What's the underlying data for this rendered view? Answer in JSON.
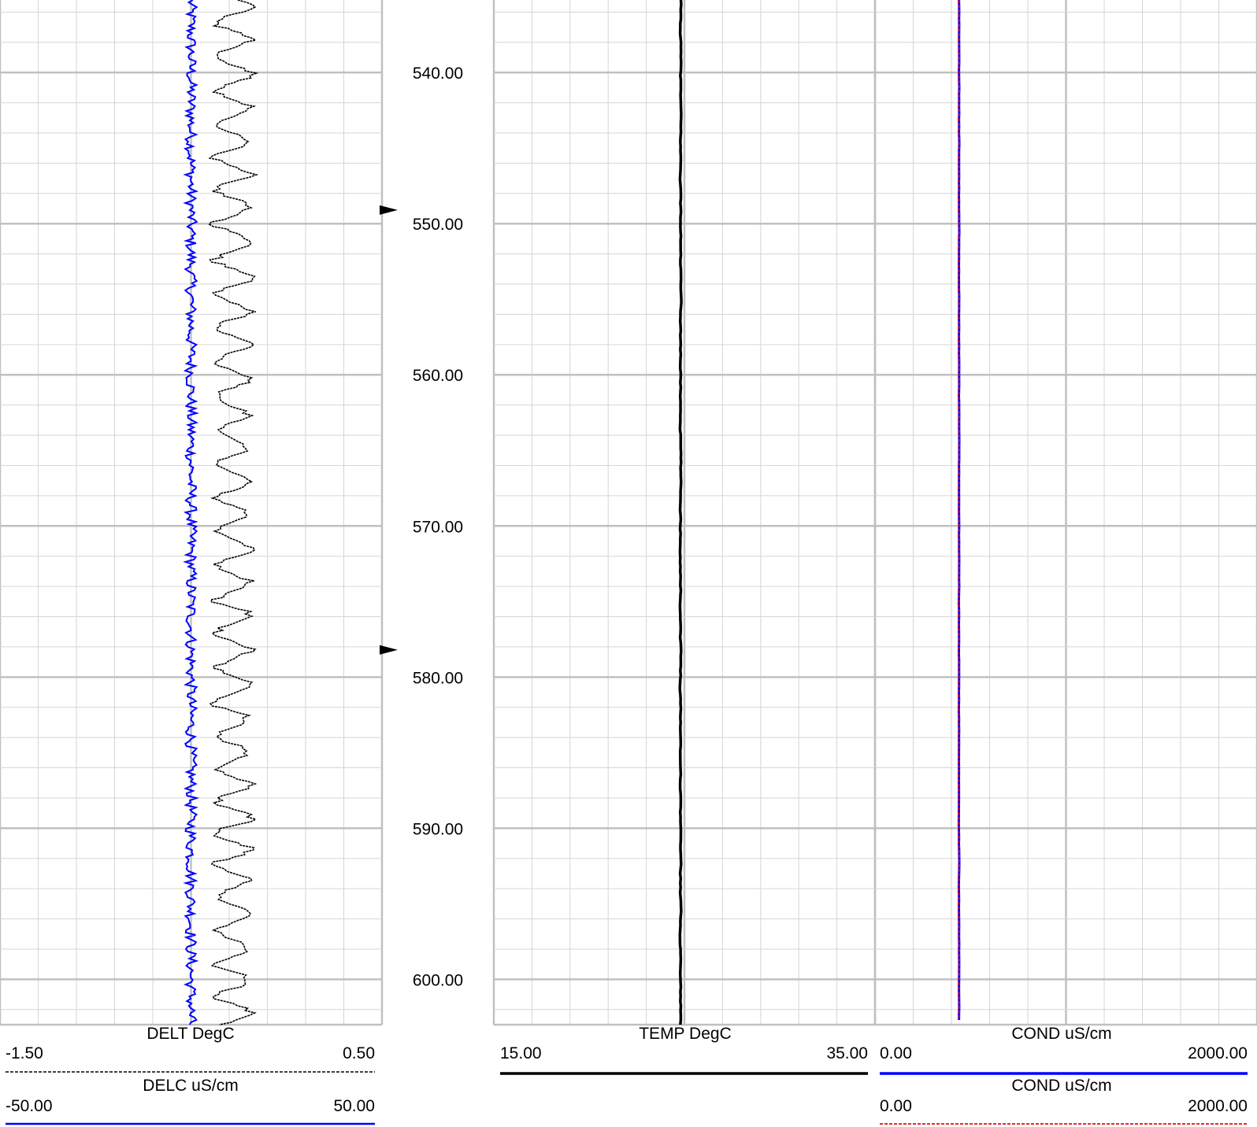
{
  "colors": {
    "grid_major": "#c0c0c0",
    "grid_minor": "#d6d6d6",
    "temp_curve": "#000000",
    "delt_curve": "#000000",
    "delc_curve": "#0000ff",
    "cond_curve": "#0000ff",
    "cond2_curve": "#ff0000"
  },
  "depth": {
    "labels": [
      "540.00",
      "550.00",
      "560.00",
      "570.00",
      "580.00",
      "590.00",
      "600.00"
    ],
    "top": 535.2,
    "bottom": 603.0,
    "markers": [
      549.1,
      578.2
    ]
  },
  "tracks": {
    "left": {
      "curves": [
        {
          "mnemonic": "DELT",
          "unit": "DegC",
          "min": "-1.50",
          "max": "0.50",
          "line_style": "dashed",
          "color": "#000000"
        },
        {
          "mnemonic": "DELC",
          "unit": "uS/cm",
          "min": "-50.00",
          "max": "50.00",
          "line_style": "solid",
          "color": "#0000ff"
        }
      ]
    },
    "middle": {
      "curves": [
        {
          "mnemonic": "TEMP",
          "unit": "DegC",
          "min": "15.00",
          "max": "35.00",
          "line_style": "solid",
          "color": "#000000"
        }
      ]
    },
    "right": {
      "curves": [
        {
          "mnemonic": "COND",
          "unit": "uS/cm",
          "min": "0.00",
          "max": "2000.00",
          "line_style": "solid",
          "color": "#0000ff"
        },
        {
          "mnemonic": "COND",
          "unit": "uS/cm",
          "min": "0.00",
          "max": "2000.00",
          "line_style": "dashed",
          "color": "#ff0000"
        }
      ]
    }
  },
  "chart_data": {
    "type": "line",
    "orientation": "vertical-depth",
    "y_axis": {
      "label": "",
      "range": [
        535.2,
        603.0
      ],
      "ticks": [
        540,
        550,
        560,
        570,
        580,
        590,
        600
      ]
    },
    "grid": true,
    "series": [
      {
        "name": "DELT DegC",
        "x_range": [
          -1.5,
          0.5
        ],
        "approx_center": -0.28,
        "approx_swing": 0.12
      },
      {
        "name": "DELC uS/cm",
        "x_range": [
          -50,
          50
        ],
        "approx_center": 0.0,
        "approx_swing": 1.5
      },
      {
        "name": "TEMP DegC",
        "x_range": [
          15,
          35
        ],
        "approx_center": 24.8,
        "approx_swing": 0.05
      },
      {
        "name": "COND uS/cm",
        "x_range": [
          0,
          2000
        ],
        "approx_center": 440,
        "approx_swing": 2
      },
      {
        "name": "COND uS/cm",
        "x_range": [
          0,
          2000
        ],
        "approx_center": 440,
        "approx_swing": 2
      }
    ]
  }
}
